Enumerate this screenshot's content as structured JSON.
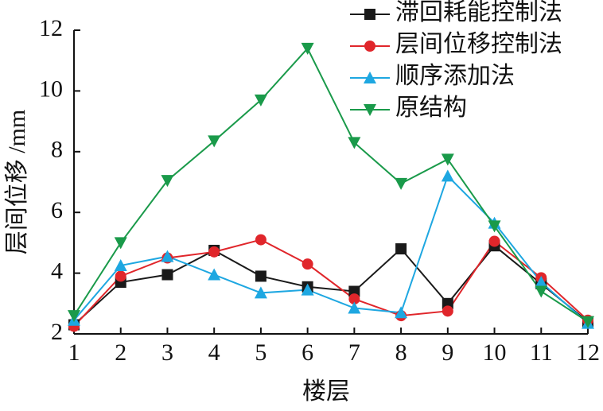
{
  "chart_data": {
    "type": "line",
    "xlabel": "楼层",
    "ylabel": "层间位移 /mm",
    "x": [
      1,
      2,
      3,
      4,
      5,
      6,
      7,
      8,
      9,
      10,
      11,
      12
    ],
    "xlim": [
      1,
      12
    ],
    "xticks": [
      1,
      2,
      3,
      4,
      5,
      6,
      7,
      8,
      9,
      10,
      11,
      12
    ],
    "ylim": [
      2,
      12
    ],
    "yticks": [
      2,
      4,
      6,
      8,
      10,
      12
    ],
    "legend": "top-right",
    "series": [
      {
        "name": "滞回耗能控制法",
        "color": "#1a1a1a",
        "marker": "square",
        "values": [
          2.3,
          3.7,
          3.95,
          4.75,
          3.9,
          3.55,
          3.4,
          4.8,
          3.0,
          4.9,
          3.65,
          2.4
        ]
      },
      {
        "name": "层间位移控制法",
        "color": "#e0262b",
        "marker": "circle",
        "values": [
          2.25,
          3.9,
          4.5,
          4.7,
          5.1,
          4.3,
          3.15,
          2.6,
          2.75,
          5.05,
          3.85,
          2.45
        ]
      },
      {
        "name": "顺序添加法",
        "color": "#1ea7e1",
        "marker": "triangle-up",
        "values": [
          2.45,
          4.25,
          4.55,
          3.95,
          3.35,
          3.45,
          2.85,
          2.7,
          7.2,
          5.65,
          3.7,
          2.35
        ]
      },
      {
        "name": "原结构",
        "color": "#1a9a4a",
        "marker": "triangle-down",
        "values": [
          2.6,
          5.0,
          7.05,
          8.35,
          9.7,
          11.4,
          8.3,
          6.95,
          7.75,
          5.55,
          3.4,
          2.4
        ]
      }
    ]
  }
}
